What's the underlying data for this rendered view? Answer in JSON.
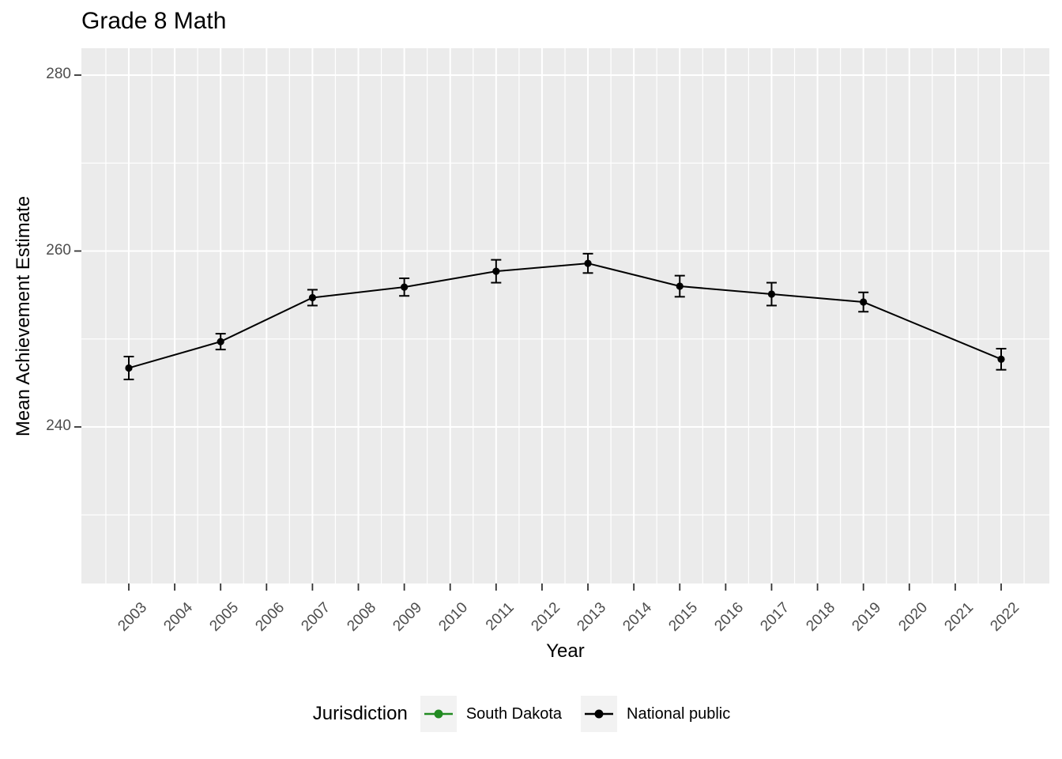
{
  "title": "Grade 8 Math",
  "y_axis": {
    "label": "Mean Achievement Estimate",
    "tick_labels": [
      "240",
      "260",
      "280"
    ]
  },
  "x_axis": {
    "label": "Year",
    "tick_labels": [
      "2003",
      "2004",
      "2005",
      "2006",
      "2007",
      "2008",
      "2009",
      "2010",
      "2011",
      "2012",
      "2013",
      "2014",
      "2015",
      "2016",
      "2017",
      "2018",
      "2019",
      "2020",
      "2021",
      "2022"
    ]
  },
  "legend": {
    "title": "Jurisdiction",
    "entries": [
      {
        "label": "South Dakota",
        "color": "#228B22"
      },
      {
        "label": "National public",
        "color": "#000000"
      }
    ]
  },
  "colors": {
    "panel_background": "#EBEBEB",
    "gridline": "#FFFFFF",
    "axis_text": "#4D4D4D",
    "tick_mark": "#333333",
    "legend_key_background": "#F2F2F2"
  },
  "chart_data": {
    "type": "line",
    "title": "Grade 8 Math",
    "xlabel": "Year",
    "ylabel": "Mean Achievement Estimate",
    "x_ticks": [
      2003,
      2004,
      2005,
      2006,
      2007,
      2008,
      2009,
      2010,
      2011,
      2012,
      2013,
      2014,
      2015,
      2016,
      2017,
      2018,
      2019,
      2020,
      2021,
      2022
    ],
    "y_major_ticks": [
      240,
      260,
      280
    ],
    "y_minor_gridlines": [
      230,
      250,
      270
    ],
    "xlim": [
      2002,
      2023
    ],
    "ylim": [
      222,
      283
    ],
    "grid": true,
    "legend_position": "bottom",
    "series": [
      {
        "name": "South Dakota",
        "color": "#228B22",
        "x": [],
        "values": [],
        "errors": []
      },
      {
        "name": "National public",
        "color": "#000000",
        "marker": "circle",
        "error_bars": true,
        "x": [
          2003,
          2005,
          2007,
          2009,
          2011,
          2013,
          2015,
          2017,
          2019,
          2022
        ],
        "values": [
          246.7,
          249.7,
          254.7,
          255.9,
          257.7,
          258.6,
          256.0,
          255.1,
          254.2,
          247.7
        ],
        "errors": [
          1.3,
          0.9,
          0.9,
          1.0,
          1.3,
          1.1,
          1.2,
          1.3,
          1.1,
          1.2
        ]
      }
    ]
  }
}
